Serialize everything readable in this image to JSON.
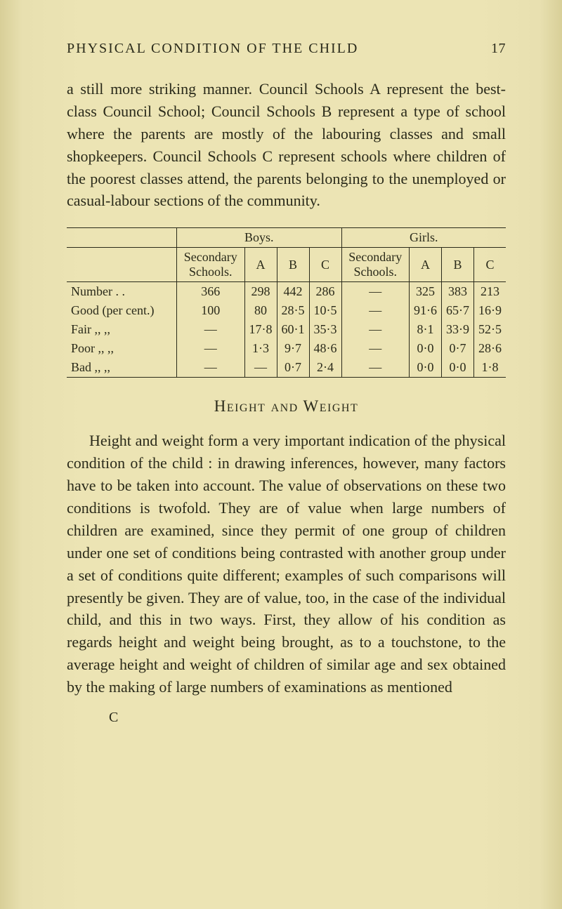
{
  "running_head": {
    "title": "PHYSICAL CONDITION OF THE CHILD",
    "page_number": "17"
  },
  "para1": "a still more striking manner. Council Schools A represent the best-class Council School; Council Schools B represent a type of school where the parents are mostly of the labouring classes and small shopkeepers. Council Schools C represent schools where children of the poorest classes attend, the parents belonging to the unemployed or casual-labour sections of the community.",
  "table": {
    "group_headers": {
      "boys": "Boys.",
      "girls": "Girls."
    },
    "col_headers": {
      "sec": "Secondary Schools.",
      "a": "A",
      "b": "B",
      "c": "C"
    },
    "rows": [
      {
        "label": "Number   .    .",
        "cells": [
          "366",
          "298",
          "442",
          "286",
          "—",
          "325",
          "383",
          "213"
        ]
      },
      {
        "label": "Good (per cent.)",
        "cells": [
          "100",
          "80",
          "28·5",
          "10·5",
          "—",
          "91·6",
          "65·7",
          "16·9"
        ]
      },
      {
        "label": "Fair     ,,     ,,",
        "cells": [
          "—",
          "17·8",
          "60·1",
          "35·3",
          "—",
          "8·1",
          "33·9",
          "52·5"
        ]
      },
      {
        "label": "Poor   ,,     ,,",
        "cells": [
          "—",
          "1·3",
          "9·7",
          "48·6",
          "—",
          "0·0",
          "0·7",
          "28·6"
        ]
      },
      {
        "label": "Bad    ,,     ,,",
        "cells": [
          "—",
          "—",
          "0·7",
          "2·4",
          "—",
          "0·0",
          "0·0",
          "1·8"
        ]
      }
    ]
  },
  "section_head": "Height and Weight",
  "para2": "Height and weight form a very important indication of the physical condition of the child : in drawing inferences, however, many factors have to be taken into account. The value of observations on these two conditions is twofold. They are of value when large numbers of children are examined, since they permit of one group of children under one set of conditions being contrasted with another group under a set of conditions quite different; examples of such comparisons will presently be given. They are of value, too, in the case of the individual child, and this in two ways. First, they allow of his condition as regards height and weight being brought, as to a touchstone, to the average height and weight of children of similar age and sex obtained by the making of large numbers of examinations as mentioned",
  "signature_mark": "C"
}
